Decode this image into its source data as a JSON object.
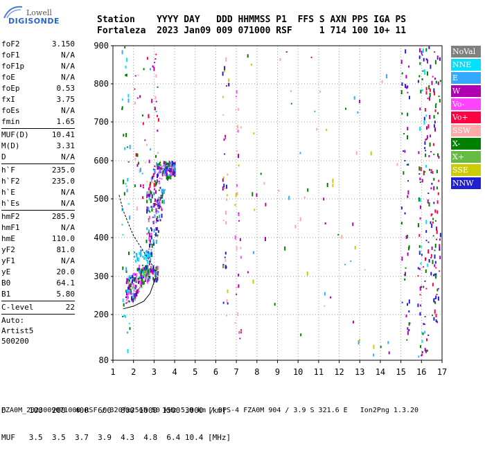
{
  "logo": {
    "line1": "Lowell",
    "line2": "DIGISONDE"
  },
  "header": {
    "line1": "Station    YYYY DAY   DDD HHMMSS P1  FFS S AXN PPS IGA PS",
    "line2": "Fortaleza  2023 Jan09 009 071000 RSF     1 714 100 10+ 11"
  },
  "params": {
    "group1": [
      {
        "label": "foF2",
        "value": "3.150"
      },
      {
        "label": "foF1",
        "value": "N/A"
      },
      {
        "label": "foF1p",
        "value": "N/A"
      },
      {
        "label": "foE",
        "value": "N/A"
      },
      {
        "label": "foEp",
        "value": "0.53"
      },
      {
        "label": "fxI",
        "value": "3.75"
      },
      {
        "label": "foEs",
        "value": "N/A"
      },
      {
        "label": "fmin",
        "value": "1.65"
      }
    ],
    "group2": [
      {
        "label": "MUF(D)",
        "value": "10.41"
      },
      {
        "label": "M(D)",
        "value": "3.31"
      },
      {
        "label": "D",
        "value": "N/A"
      }
    ],
    "group3": [
      {
        "label": "h`F",
        "value": "235.0"
      },
      {
        "label": "h`F2",
        "value": "235.0"
      },
      {
        "label": "h`E",
        "value": "N/A"
      },
      {
        "label": "h`Es",
        "value": "N/A"
      }
    ],
    "group4": [
      {
        "label": "hmF2",
        "value": "285.9"
      },
      {
        "label": "hmF1",
        "value": "N/A"
      },
      {
        "label": "hmE",
        "value": "110.0"
      },
      {
        "label": "yF2",
        "value": "81.0"
      },
      {
        "label": "yF1",
        "value": "N/A"
      },
      {
        "label": "yE",
        "value": "20.0"
      },
      {
        "label": "B0",
        "value": "64.1"
      },
      {
        "label": "B1",
        "value": "5.80"
      }
    ],
    "group5": [
      {
        "label": "C-level",
        "value": "22"
      }
    ],
    "auto": [
      "Auto:",
      "Artist5",
      "500200"
    ]
  },
  "legend": [
    {
      "label": "NoVal",
      "color": "#808080"
    },
    {
      "label": "NNE",
      "color": "#00e0ff"
    },
    {
      "label": "E",
      "color": "#33aaff"
    },
    {
      "label": "W",
      "color": "#b000b0"
    },
    {
      "label": "Vo-",
      "color": "#ff44ff"
    },
    {
      "label": "Vo+",
      "color": "#ff0040"
    },
    {
      "label": "SSW",
      "color": "#ffaaaa"
    },
    {
      "label": "X-",
      "color": "#008000"
    },
    {
      "label": "X+",
      "color": "#66bb44"
    },
    {
      "label": "SSE",
      "color": "#cccc00"
    },
    {
      "label": "NNW",
      "color": "#2020d0"
    }
  ],
  "footer": {
    "line1": "D     100  200  400  600  800 1000 1500 3000 [km]",
    "line2": "MUF   3.5  3.5  3.7  3.9  4.3  4.8  6.4 10.4 [MHz]",
    "line3": "FZA0M_2023009071000.RSF / 320fx256h 50 kHz 5.0 km / DPS-4 FZA0M 904 / 3.9 S 321.6 E   Ion2Png 1.3.20"
  },
  "chart_data": {
    "type": "scatter",
    "title": "",
    "xlabel": "",
    "ylabel": "",
    "xlim": [
      1,
      17
    ],
    "ylim": [
      80,
      900
    ],
    "xticks": [
      1,
      2,
      3,
      4,
      5,
      6,
      7,
      8,
      9,
      10,
      11,
      12,
      13,
      14,
      15,
      16,
      17
    ],
    "yticks": [
      80,
      200,
      300,
      400,
      500,
      600,
      700,
      800,
      900
    ],
    "grid": true,
    "profile_curve": [
      [
        1.5,
        215
      ],
      [
        2.0,
        222
      ],
      [
        2.5,
        235
      ],
      [
        2.8,
        255
      ],
      [
        3.0,
        285
      ],
      [
        3.1,
        300
      ]
    ],
    "trace_curve": [
      [
        1.3,
        510
      ],
      [
        1.5,
        470
      ],
      [
        1.8,
        430
      ],
      [
        2.0,
        405
      ],
      [
        2.3,
        380
      ],
      [
        2.6,
        355
      ],
      [
        2.9,
        330
      ],
      [
        3.1,
        310
      ]
    ],
    "echo_regions": [
      {
        "name": "F-trace",
        "x": [
          1.6,
          3.2
        ],
        "y": [
          230,
          330
        ],
        "colors": [
          "#008000",
          "#66bb44",
          "#33aaff",
          "#b000b0",
          "#ff44ff",
          "#2020d0"
        ]
      },
      {
        "name": "F-trace-upper",
        "x": [
          2.6,
          4.0
        ],
        "y": [
          330,
          600
        ],
        "colors": [
          "#b000b0",
          "#ff44ff",
          "#2020d0",
          "#008000",
          "#33aaff"
        ]
      },
      {
        "name": "E-cluster",
        "x": [
          2.0,
          2.8
        ],
        "y": [
          340,
          370
        ],
        "colors": [
          "#33aaff",
          "#00e0ff"
        ]
      },
      {
        "name": "multi-hop",
        "x": [
          2.0,
          3.2
        ],
        "y": [
          470,
          880
        ],
        "colors": [
          "#ff0040",
          "#b000b0",
          "#008000",
          "#33aaff",
          "#ffaaaa"
        ]
      },
      {
        "name": "low-freq-left",
        "x": [
          1.4,
          1.8
        ],
        "y": [
          90,
          900
        ],
        "colors": [
          "#00e0ff",
          "#33aaff",
          "#008000"
        ]
      },
      {
        "name": "col-6.5",
        "x": [
          6.3,
          6.6
        ],
        "y": [
          140,
          900
        ],
        "colors": [
          "#ffaaaa",
          "#b000b0",
          "#cccc00",
          "#2020d0"
        ]
      },
      {
        "name": "col-7",
        "x": [
          6.9,
          7.2
        ],
        "y": [
          130,
          800
        ],
        "colors": [
          "#cccc00",
          "#ff44ff",
          "#b000b0",
          "#ffaaaa"
        ]
      },
      {
        "name": "col-16",
        "x": [
          15.8,
          16.3
        ],
        "y": [
          90,
          900
        ],
        "colors": [
          "#008000",
          "#2020d0",
          "#b000b0",
          "#00e0ff",
          "#ff0040"
        ]
      },
      {
        "name": "col-16.5",
        "x": [
          16.3,
          16.9
        ],
        "y": [
          180,
          900
        ],
        "colors": [
          "#008000",
          "#2020d0",
          "#b000b0",
          "#ff0040"
        ]
      },
      {
        "name": "col-15",
        "x": [
          15.0,
          15.4
        ],
        "y": [
          130,
          900
        ],
        "colors": [
          "#008000",
          "#b000b0",
          "#2020d0"
        ]
      },
      {
        "name": "sparse",
        "x": [
          7.5,
          14.8
        ],
        "y": [
          90,
          900
        ],
        "colors": [
          "#ffaaaa",
          "#b000b0",
          "#cccc00",
          "#33aaff",
          "#008000"
        ]
      }
    ]
  }
}
